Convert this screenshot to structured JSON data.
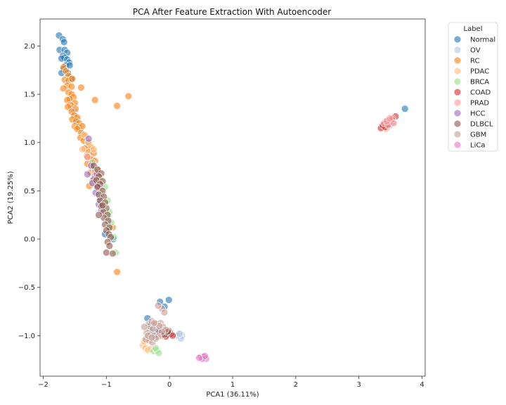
{
  "chart_data": {
    "type": "scatter",
    "title": "PCA After Feature Extraction With Autoencoder",
    "xlabel": "PCA1 (36.11%)",
    "ylabel": "PCA2 (19.25%)",
    "xlim": [
      -2.05,
      4.05
    ],
    "ylim": [
      -1.42,
      2.28
    ],
    "xticks": [
      -2,
      -1,
      0,
      1,
      2,
      3,
      4
    ],
    "xtick_labels": [
      "−2",
      "−1",
      "0",
      "1",
      "2",
      "3",
      "4"
    ],
    "yticks": [
      -1.0,
      -0.5,
      0.0,
      0.5,
      1.0,
      1.5,
      2.0
    ],
    "ytick_labels": [
      "−1.0",
      "−0.5",
      "0.0",
      "0.5",
      "1.0",
      "1.5",
      "2.0"
    ],
    "grid": false,
    "legend": {
      "title": "Label",
      "placement": "outside-right"
    },
    "series": [
      {
        "name": "Normal",
        "color": "#1f77b4",
        "points": [
          [
            -1.75,
            2.11
          ],
          [
            -1.69,
            2.07
          ],
          [
            -1.67,
            2.04
          ],
          [
            -1.74,
            1.96
          ],
          [
            -1.66,
            1.96
          ],
          [
            -1.62,
            1.93
          ],
          [
            -1.69,
            1.9
          ],
          [
            -1.66,
            1.88
          ],
          [
            -1.71,
            1.87
          ],
          [
            -1.62,
            1.86
          ],
          [
            -1.59,
            1.83
          ],
          [
            -1.64,
            1.8
          ],
          [
            -1.58,
            1.8
          ],
          [
            -1.68,
            1.76
          ],
          [
            -1.71,
            1.72
          ],
          [
            -1.61,
            1.72
          ],
          [
            -1.55,
            1.66
          ],
          [
            -1.02,
            0.05
          ],
          [
            -0.89,
            0.0
          ],
          [
            -0.15,
            -0.65
          ],
          [
            -0.01,
            -0.63
          ],
          [
            -0.08,
            -0.7
          ],
          [
            -0.35,
            -0.82
          ],
          [
            -0.3,
            -0.9
          ],
          [
            -0.28,
            -0.96
          ],
          [
            -0.18,
            -0.93
          ],
          [
            -0.1,
            -0.95
          ],
          [
            -0.22,
            -0.99
          ],
          [
            3.73,
            1.35
          ]
        ]
      },
      {
        "name": "OV",
        "color": "#aec7e8",
        "points": [
          [
            -1.55,
            1.35
          ],
          [
            -1.5,
            1.32
          ],
          [
            -1.46,
            1.24
          ],
          [
            -1.4,
            1.12
          ],
          [
            -1.32,
            0.98
          ],
          [
            -1.22,
            0.82
          ],
          [
            -1.15,
            0.7
          ],
          [
            -1.08,
            0.55
          ],
          [
            0.15,
            -0.98
          ],
          [
            0.2,
            -1.0
          ],
          [
            0.18,
            -1.03
          ],
          [
            0.12,
            -1.0
          ],
          [
            0.16,
            -0.98
          ],
          [
            3.43,
            1.18
          ],
          [
            3.41,
            1.15
          ],
          [
            3.46,
            1.16
          ],
          [
            3.52,
            1.2
          ],
          [
            3.39,
            1.17
          ],
          [
            3.44,
            1.2
          ],
          [
            3.49,
            1.22
          ],
          [
            3.5,
            1.18
          ],
          [
            3.55,
            1.21
          ]
        ]
      },
      {
        "name": "RC",
        "color": "#ff7f0e",
        "points": [
          [
            -1.68,
            1.78
          ],
          [
            -1.64,
            1.74
          ],
          [
            -1.6,
            1.69
          ],
          [
            -1.66,
            1.65
          ],
          [
            -1.6,
            1.64
          ],
          [
            -1.54,
            1.66
          ],
          [
            -1.62,
            1.59
          ],
          [
            -1.55,
            1.58
          ],
          [
            -1.68,
            1.56
          ],
          [
            -1.6,
            1.52
          ],
          [
            -1.55,
            1.5
          ],
          [
            -1.52,
            1.47
          ],
          [
            -1.58,
            1.45
          ],
          [
            -1.62,
            1.44
          ],
          [
            -1.5,
            1.41
          ],
          [
            -1.57,
            1.39
          ],
          [
            -1.61,
            1.37
          ],
          [
            -1.49,
            1.35
          ],
          [
            -1.55,
            1.32
          ],
          [
            -1.51,
            1.28
          ],
          [
            -1.46,
            1.26
          ],
          [
            -1.54,
            1.24
          ],
          [
            -1.48,
            1.22
          ],
          [
            -1.43,
            1.2
          ],
          [
            -1.5,
            1.17
          ],
          [
            -1.44,
            1.16
          ],
          [
            -1.38,
            1.17
          ],
          [
            -1.46,
            1.14
          ],
          [
            -1.4,
            1.1
          ],
          [
            -1.33,
            1.07
          ],
          [
            -1.41,
            1.05
          ],
          [
            -1.36,
            1.02
          ],
          [
            -1.29,
            1.0
          ],
          [
            -1.24,
            0.95
          ],
          [
            -1.34,
            0.94
          ],
          [
            -1.28,
            0.9
          ],
          [
            -1.2,
            0.89
          ],
          [
            -1.31,
            0.86
          ],
          [
            -1.25,
            0.83
          ],
          [
            -1.18,
            0.81
          ],
          [
            -1.3,
            0.78
          ],
          [
            -1.22,
            0.75
          ],
          [
            -1.14,
            0.72
          ],
          [
            -1.25,
            0.69
          ],
          [
            -1.18,
            0.66
          ],
          [
            -1.12,
            0.62
          ],
          [
            -1.22,
            0.6
          ],
          [
            -1.16,
            0.57
          ],
          [
            -1.27,
            0.55
          ],
          [
            -1.1,
            0.52
          ],
          [
            -1.4,
            1.57
          ],
          [
            -1.18,
            1.44
          ],
          [
            -0.83,
            1.38
          ],
          [
            -0.65,
            1.48
          ],
          [
            -0.9,
            0.12
          ],
          [
            -0.83,
            -0.34
          ]
        ]
      },
      {
        "name": "PDAC",
        "color": "#ffbb78",
        "points": [
          [
            -1.35,
            1.08
          ],
          [
            -1.28,
            1.0
          ],
          [
            -1.2,
            0.93
          ],
          [
            -1.38,
            0.93
          ],
          [
            -0.42,
            -1.1
          ],
          [
            -0.38,
            -1.13
          ],
          [
            -0.34,
            -1.15
          ],
          [
            -0.4,
            -1.06
          ],
          [
            -0.3,
            -1.14
          ],
          [
            -0.36,
            -1.04
          ],
          [
            3.43,
            1.14
          ],
          [
            3.4,
            1.16
          ]
        ]
      },
      {
        "name": "BRCA",
        "color": "#98df8a",
        "points": [
          [
            -1.22,
            0.79
          ],
          [
            -1.18,
            0.72
          ],
          [
            -1.1,
            0.63
          ],
          [
            -1.02,
            0.54
          ],
          [
            -1.08,
            0.47
          ],
          [
            -0.98,
            0.4
          ],
          [
            -0.95,
            0.28
          ],
          [
            -0.98,
            0.22
          ],
          [
            -0.92,
            0.17
          ],
          [
            -0.95,
            0.11
          ],
          [
            -0.88,
            0.02
          ],
          [
            -0.85,
            -0.14
          ],
          [
            -0.25,
            -1.16
          ],
          [
            -0.2,
            -1.15
          ],
          [
            -0.17,
            -1.18
          ],
          [
            -0.22,
            -1.13
          ]
        ]
      },
      {
        "name": "COAD",
        "color": "#d62728",
        "points": [
          [
            -0.08,
            -0.97
          ],
          [
            -0.04,
            -0.99
          ],
          [
            0.02,
            -0.98
          ],
          [
            -0.1,
            -1.0
          ],
          [
            0.0,
            -0.96
          ],
          [
            -0.14,
            -0.97
          ],
          [
            0.05,
            -1.0
          ],
          [
            -0.06,
            -1.01
          ],
          [
            -0.02,
            -0.95
          ],
          [
            3.35,
            1.15
          ],
          [
            3.38,
            1.18
          ],
          [
            3.42,
            1.16
          ],
          [
            3.47,
            1.19
          ],
          [
            3.5,
            1.22
          ],
          [
            3.45,
            1.23
          ],
          [
            3.58,
            1.27
          ],
          [
            3.53,
            1.25
          ]
        ]
      },
      {
        "name": "PRAD",
        "color": "#ff9896",
        "points": [
          [
            -1.3,
            0.85
          ],
          [
            -1.18,
            0.7
          ],
          [
            -1.12,
            0.6
          ],
          [
            -0.12,
            -1.0
          ],
          [
            -0.15,
            -0.98
          ],
          [
            3.4,
            1.2
          ],
          [
            3.46,
            1.18
          ],
          [
            3.52,
            1.24
          ],
          [
            3.44,
            1.22
          ],
          [
            3.55,
            1.2
          ],
          [
            3.49,
            1.25
          ]
        ]
      },
      {
        "name": "HCC",
        "color": "#9467bd",
        "points": [
          [
            -1.28,
            1.04
          ],
          [
            -1.3,
            0.67
          ],
          [
            -1.24,
            0.76
          ],
          [
            -1.2,
            0.62
          ],
          [
            -1.17,
            0.48
          ],
          [
            -1.14,
            0.55
          ],
          [
            -1.1,
            0.42
          ],
          [
            -1.12,
            0.36
          ],
          [
            -1.08,
            0.3
          ],
          [
            -1.22,
            0.58
          ],
          [
            -1.15,
            0.67
          ],
          [
            -0.2,
            -0.94
          ],
          [
            -0.16,
            -0.96
          ]
        ]
      },
      {
        "name": "DLBCL",
        "color": "#8c564b",
        "points": [
          [
            -1.2,
            0.76
          ],
          [
            -1.14,
            0.72
          ],
          [
            -1.08,
            0.68
          ],
          [
            -1.12,
            0.65
          ],
          [
            -1.16,
            0.61
          ],
          [
            -1.06,
            0.6
          ],
          [
            -1.1,
            0.57
          ],
          [
            -1.14,
            0.54
          ],
          [
            -1.06,
            0.5
          ],
          [
            -1.12,
            0.46
          ],
          [
            -1.04,
            0.44
          ],
          [
            -1.1,
            0.4
          ],
          [
            -1.02,
            0.38
          ],
          [
            -1.08,
            0.34
          ],
          [
            -1.0,
            0.32
          ],
          [
            -1.05,
            0.28
          ],
          [
            -0.98,
            0.25
          ],
          [
            -1.04,
            0.22
          ],
          [
            -0.97,
            0.19
          ],
          [
            -1.02,
            0.15
          ],
          [
            -0.95,
            0.12
          ],
          [
            -1.0,
            0.09
          ],
          [
            -0.96,
            0.05
          ],
          [
            -0.93,
            0.02
          ],
          [
            -0.98,
            -0.03
          ],
          [
            -0.95,
            -0.07
          ],
          [
            -1.0,
            -0.14
          ],
          [
            -0.9,
            -0.15
          ],
          [
            -1.12,
            0.25
          ],
          [
            -1.06,
            0.35
          ],
          [
            -0.12,
            -0.97
          ],
          [
            -0.08,
            -0.99
          ],
          [
            -0.03,
            -0.96
          ]
        ]
      },
      {
        "name": "GBM",
        "color": "#c49c94",
        "points": [
          [
            -0.33,
            -0.88
          ],
          [
            -0.28,
            -0.85
          ],
          [
            -0.22,
            -0.88
          ],
          [
            -0.14,
            -0.87
          ],
          [
            -0.1,
            -0.91
          ],
          [
            -0.06,
            -0.94
          ],
          [
            -0.32,
            -0.93
          ],
          [
            -0.26,
            -0.93
          ],
          [
            -0.18,
            -0.95
          ],
          [
            -0.12,
            -0.96
          ],
          [
            -0.36,
            -0.97
          ],
          [
            -0.3,
            -0.99
          ],
          [
            -0.24,
            -1.0
          ],
          [
            -0.18,
            -1.01
          ],
          [
            -0.38,
            -1.04
          ],
          [
            -0.32,
            -1.05
          ],
          [
            -0.27,
            -1.07
          ],
          [
            -0.22,
            -1.03
          ],
          [
            -0.4,
            -0.91
          ],
          [
            -0.16,
            -0.9
          ],
          [
            -0.12,
            -0.72
          ],
          [
            -0.18,
            -0.69
          ],
          [
            -0.08,
            -0.76
          ],
          [
            -0.24,
            -0.87
          ],
          [
            -0.34,
            -1.0
          ],
          [
            -0.28,
            -1.02
          ]
        ]
      },
      {
        "name": "LiCa",
        "color": "#e377c2",
        "points": [
          [
            0.5,
            -1.22
          ],
          [
            0.54,
            -1.22
          ],
          [
            0.58,
            -1.24
          ],
          [
            0.52,
            -1.24
          ],
          [
            0.56,
            -1.21
          ],
          [
            0.47,
            -1.23
          ]
        ]
      }
    ]
  }
}
